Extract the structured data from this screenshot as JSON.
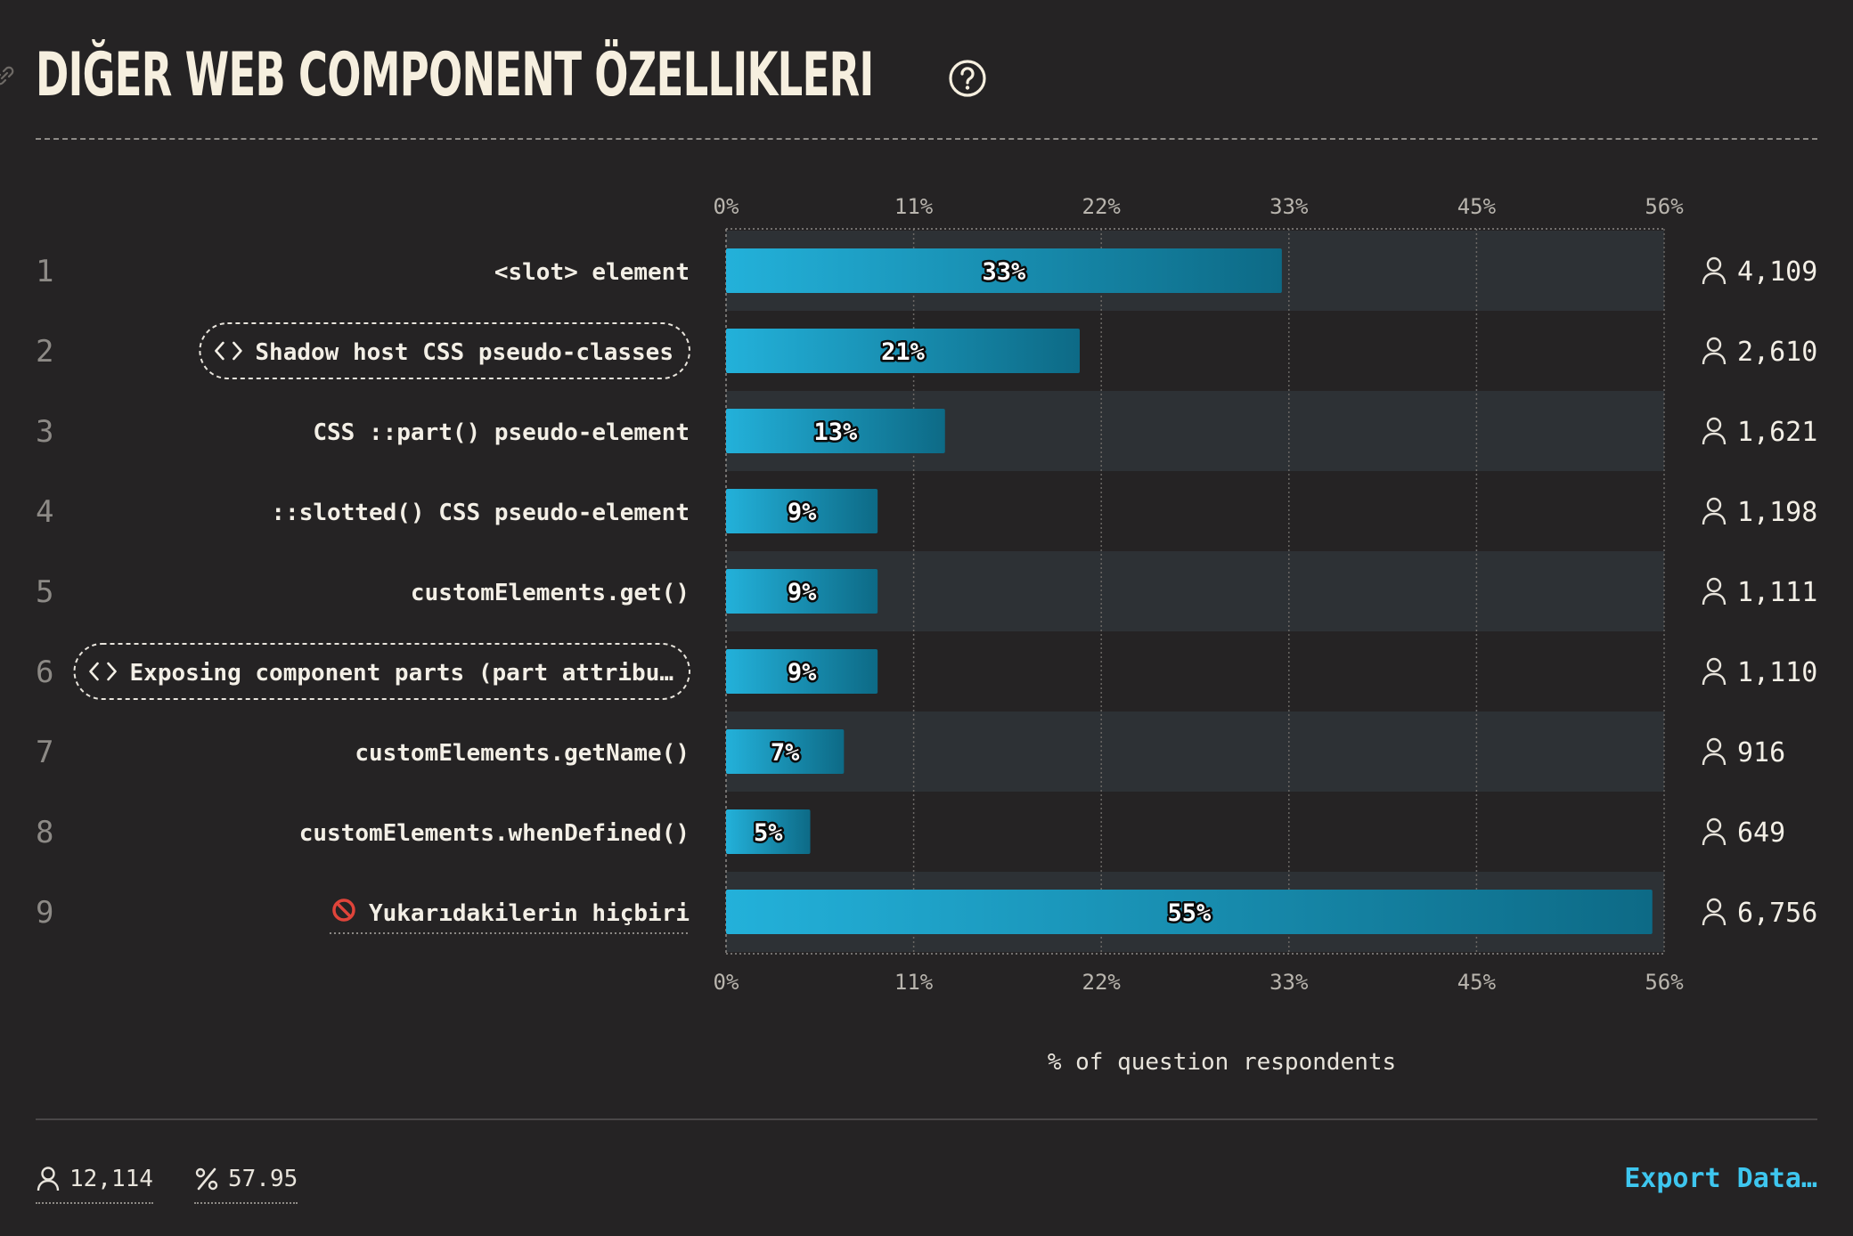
{
  "title": "DIĞER WEB COMPONENT ÖZELLIKLERI",
  "footer": {
    "respondents": "12,114",
    "percent": "57.95",
    "export_label": "Export Data…"
  },
  "colors": {
    "bar_start": "#23b1da",
    "bar_end": "#0d6a86",
    "accent": "#3ec6ef",
    "band": "#2d3135"
  },
  "chart_data": {
    "type": "bar",
    "orientation": "horizontal",
    "xlabel": "% of question respondents",
    "xlim": [
      0,
      56
    ],
    "ticks": [
      "0%",
      "11%",
      "22%",
      "33%",
      "45%",
      "56%"
    ],
    "tick_values": [
      0,
      11.14,
      22.28,
      33.42,
      44.56,
      55.7
    ],
    "grid": true,
    "rows": [
      {
        "rank": "1",
        "label": "<slot> element",
        "value": 33,
        "display": "33%",
        "count": "4,109",
        "style": "plain"
      },
      {
        "rank": "2",
        "label": "Shadow host CSS pseudo-classes",
        "value": 21,
        "display": "21%",
        "count": "2,610",
        "style": "code"
      },
      {
        "rank": "3",
        "label": "CSS ::part() pseudo-element",
        "value": 13,
        "display": "13%",
        "count": "1,621",
        "style": "plain"
      },
      {
        "rank": "4",
        "label": "::slotted() CSS pseudo-element",
        "value": 9,
        "display": "9%",
        "count": "1,198",
        "style": "plain"
      },
      {
        "rank": "5",
        "label": "customElements.get()",
        "value": 9,
        "display": "9%",
        "count": "1,111",
        "style": "plain"
      },
      {
        "rank": "6",
        "label": "Exposing component parts (part attribu…",
        "value": 9,
        "display": "9%",
        "count": "1,110",
        "style": "code"
      },
      {
        "rank": "7",
        "label": "customElements.getName()",
        "value": 7,
        "display": "7%",
        "count": "916",
        "style": "plain"
      },
      {
        "rank": "8",
        "label": "customElements.whenDefined()",
        "value": 5,
        "display": "5%",
        "count": "649",
        "style": "plain"
      },
      {
        "rank": "9",
        "label": "Yukarıdakilerin hiçbiri",
        "value": 55,
        "display": "55%",
        "count": "6,756",
        "style": "none"
      }
    ]
  }
}
